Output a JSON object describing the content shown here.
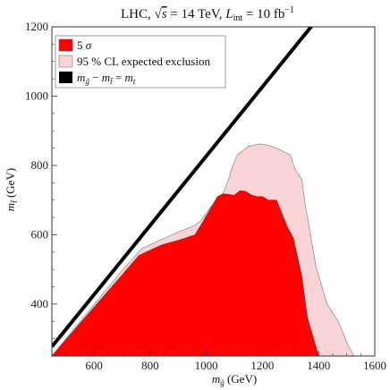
{
  "chart_data": {
    "type": "area",
    "title": "LHC, √s = 14 TeV, L_int = 10 fb⁻¹",
    "title_parts": {
      "prefix": "LHC, ",
      "sqrt": "√",
      "s": "s",
      "eq1": " = 14 TeV, ",
      "L": "L",
      "int": "int",
      "eq2": " = 10 fb",
      "exp": "−1"
    },
    "xlabel": {
      "m": "m",
      "sub": "g̃",
      "unit": " (GeV)"
    },
    "ylabel": {
      "m": "m",
      "sub": "t̃",
      "unit": " (GeV)"
    },
    "xlim": [
      450,
      1600
    ],
    "ylim": [
      250,
      1200
    ],
    "xticks": [
      600,
      800,
      1000,
      1200,
      1400,
      1600
    ],
    "yticks": [
      400,
      600,
      800,
      1000,
      1200
    ],
    "grid": false,
    "legend_position": "top-left",
    "series": [
      {
        "name": "95 % CL expected exclusion",
        "color": "#f9d3d6",
        "edge": "#888888",
        "x": [
          450,
          700,
          770,
          900,
          960,
          980,
          1010,
          1060,
          1080,
          1090,
          1110,
          1150,
          1190,
          1220,
          1250,
          1300,
          1315,
          1340,
          1350,
          1390,
          1430,
          1470,
          1500,
          1525,
          1400
        ],
        "y": [
          250,
          497,
          560,
          608,
          627,
          640,
          675,
          720,
          762,
          790,
          830,
          855,
          862,
          858,
          850,
          830,
          790,
          760,
          700,
          510,
          400,
          350,
          290,
          250,
          250
        ],
        "boundary_y_below": 250
      },
      {
        "name": "5 σ",
        "legend_label": {
          "n": "5",
          "sym": " σ"
        },
        "color": "#ff0000",
        "edge": "#444444",
        "x": [
          450,
          760,
          840,
          910,
          960,
          990,
          1040,
          1060,
          1100,
          1120,
          1140,
          1160,
          1180,
          1200,
          1220,
          1250,
          1270,
          1290,
          1310,
          1340,
          1360,
          1400
        ],
        "y": [
          250,
          540,
          570,
          586,
          600,
          640,
          710,
          718,
          714,
          727,
          725,
          715,
          710,
          710,
          700,
          700,
          660,
          620,
          590,
          480,
          360,
          250
        ],
        "boundary_y_below": 250
      },
      {
        "name": "m_g̃ − m_t̃ = m_t",
        "legend_label": {
          "m1": "m",
          "s1": "g̃",
          "minus": " − ",
          "m2": "m",
          "s2": "t̃",
          "eq": " = ",
          "m3": "m",
          "s3": "t"
        },
        "color": "#000000",
        "type": "line",
        "x": [
          450,
          1500
        ],
        "y": [
          277,
          1327
        ]
      }
    ]
  }
}
